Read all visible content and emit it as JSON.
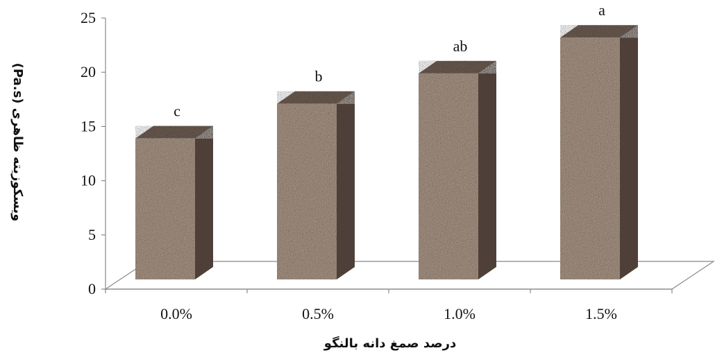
{
  "chart_data": {
    "type": "bar",
    "categories": [
      "0.0%",
      "0.5%",
      "1.0%",
      "1.5%"
    ],
    "values": [
      13.0,
      16.2,
      19.0,
      22.3
    ],
    "labels": [
      "c",
      "b",
      "ab",
      "a"
    ],
    "xlabel": "درصد صمغ دانه بالنگو",
    "ylabel": "ویسکوزیته ظاهری (Pa.s)",
    "ylim": [
      0,
      25
    ],
    "yticks": [
      0,
      5,
      10,
      15,
      20,
      25
    ],
    "grid": false,
    "legend": "none",
    "style": "3d-column",
    "colors": {
      "bar_face": "#a89585",
      "bar_side": "#4e4038",
      "bar_top": "#6d5d52",
      "axis": "#888888"
    }
  }
}
